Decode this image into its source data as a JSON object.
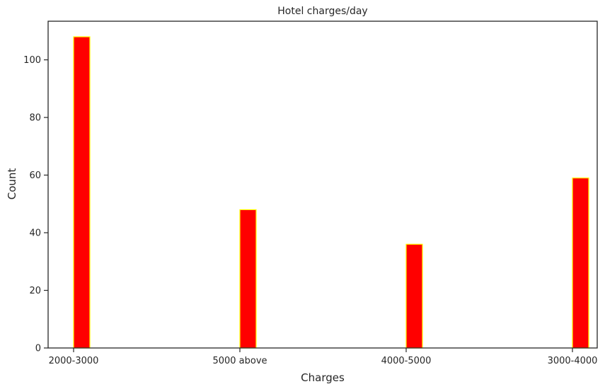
{
  "chart_data": {
    "type": "bar",
    "title": "Hotel charges/day",
    "xlabel": "Charges",
    "ylabel": "Count",
    "categories": [
      "2000-3000",
      "5000 above",
      "4000-5000",
      "3000-4000"
    ],
    "values": [
      108,
      48,
      36,
      59
    ],
    "ylim": [
      0,
      113.4
    ],
    "yticks": [
      "0",
      "20",
      "40",
      "60",
      "80",
      "100"
    ],
    "grid": false,
    "colors": {
      "bar_fill": "#ff0000",
      "bar_edge": "#ffff00",
      "axis": "#262626"
    }
  }
}
